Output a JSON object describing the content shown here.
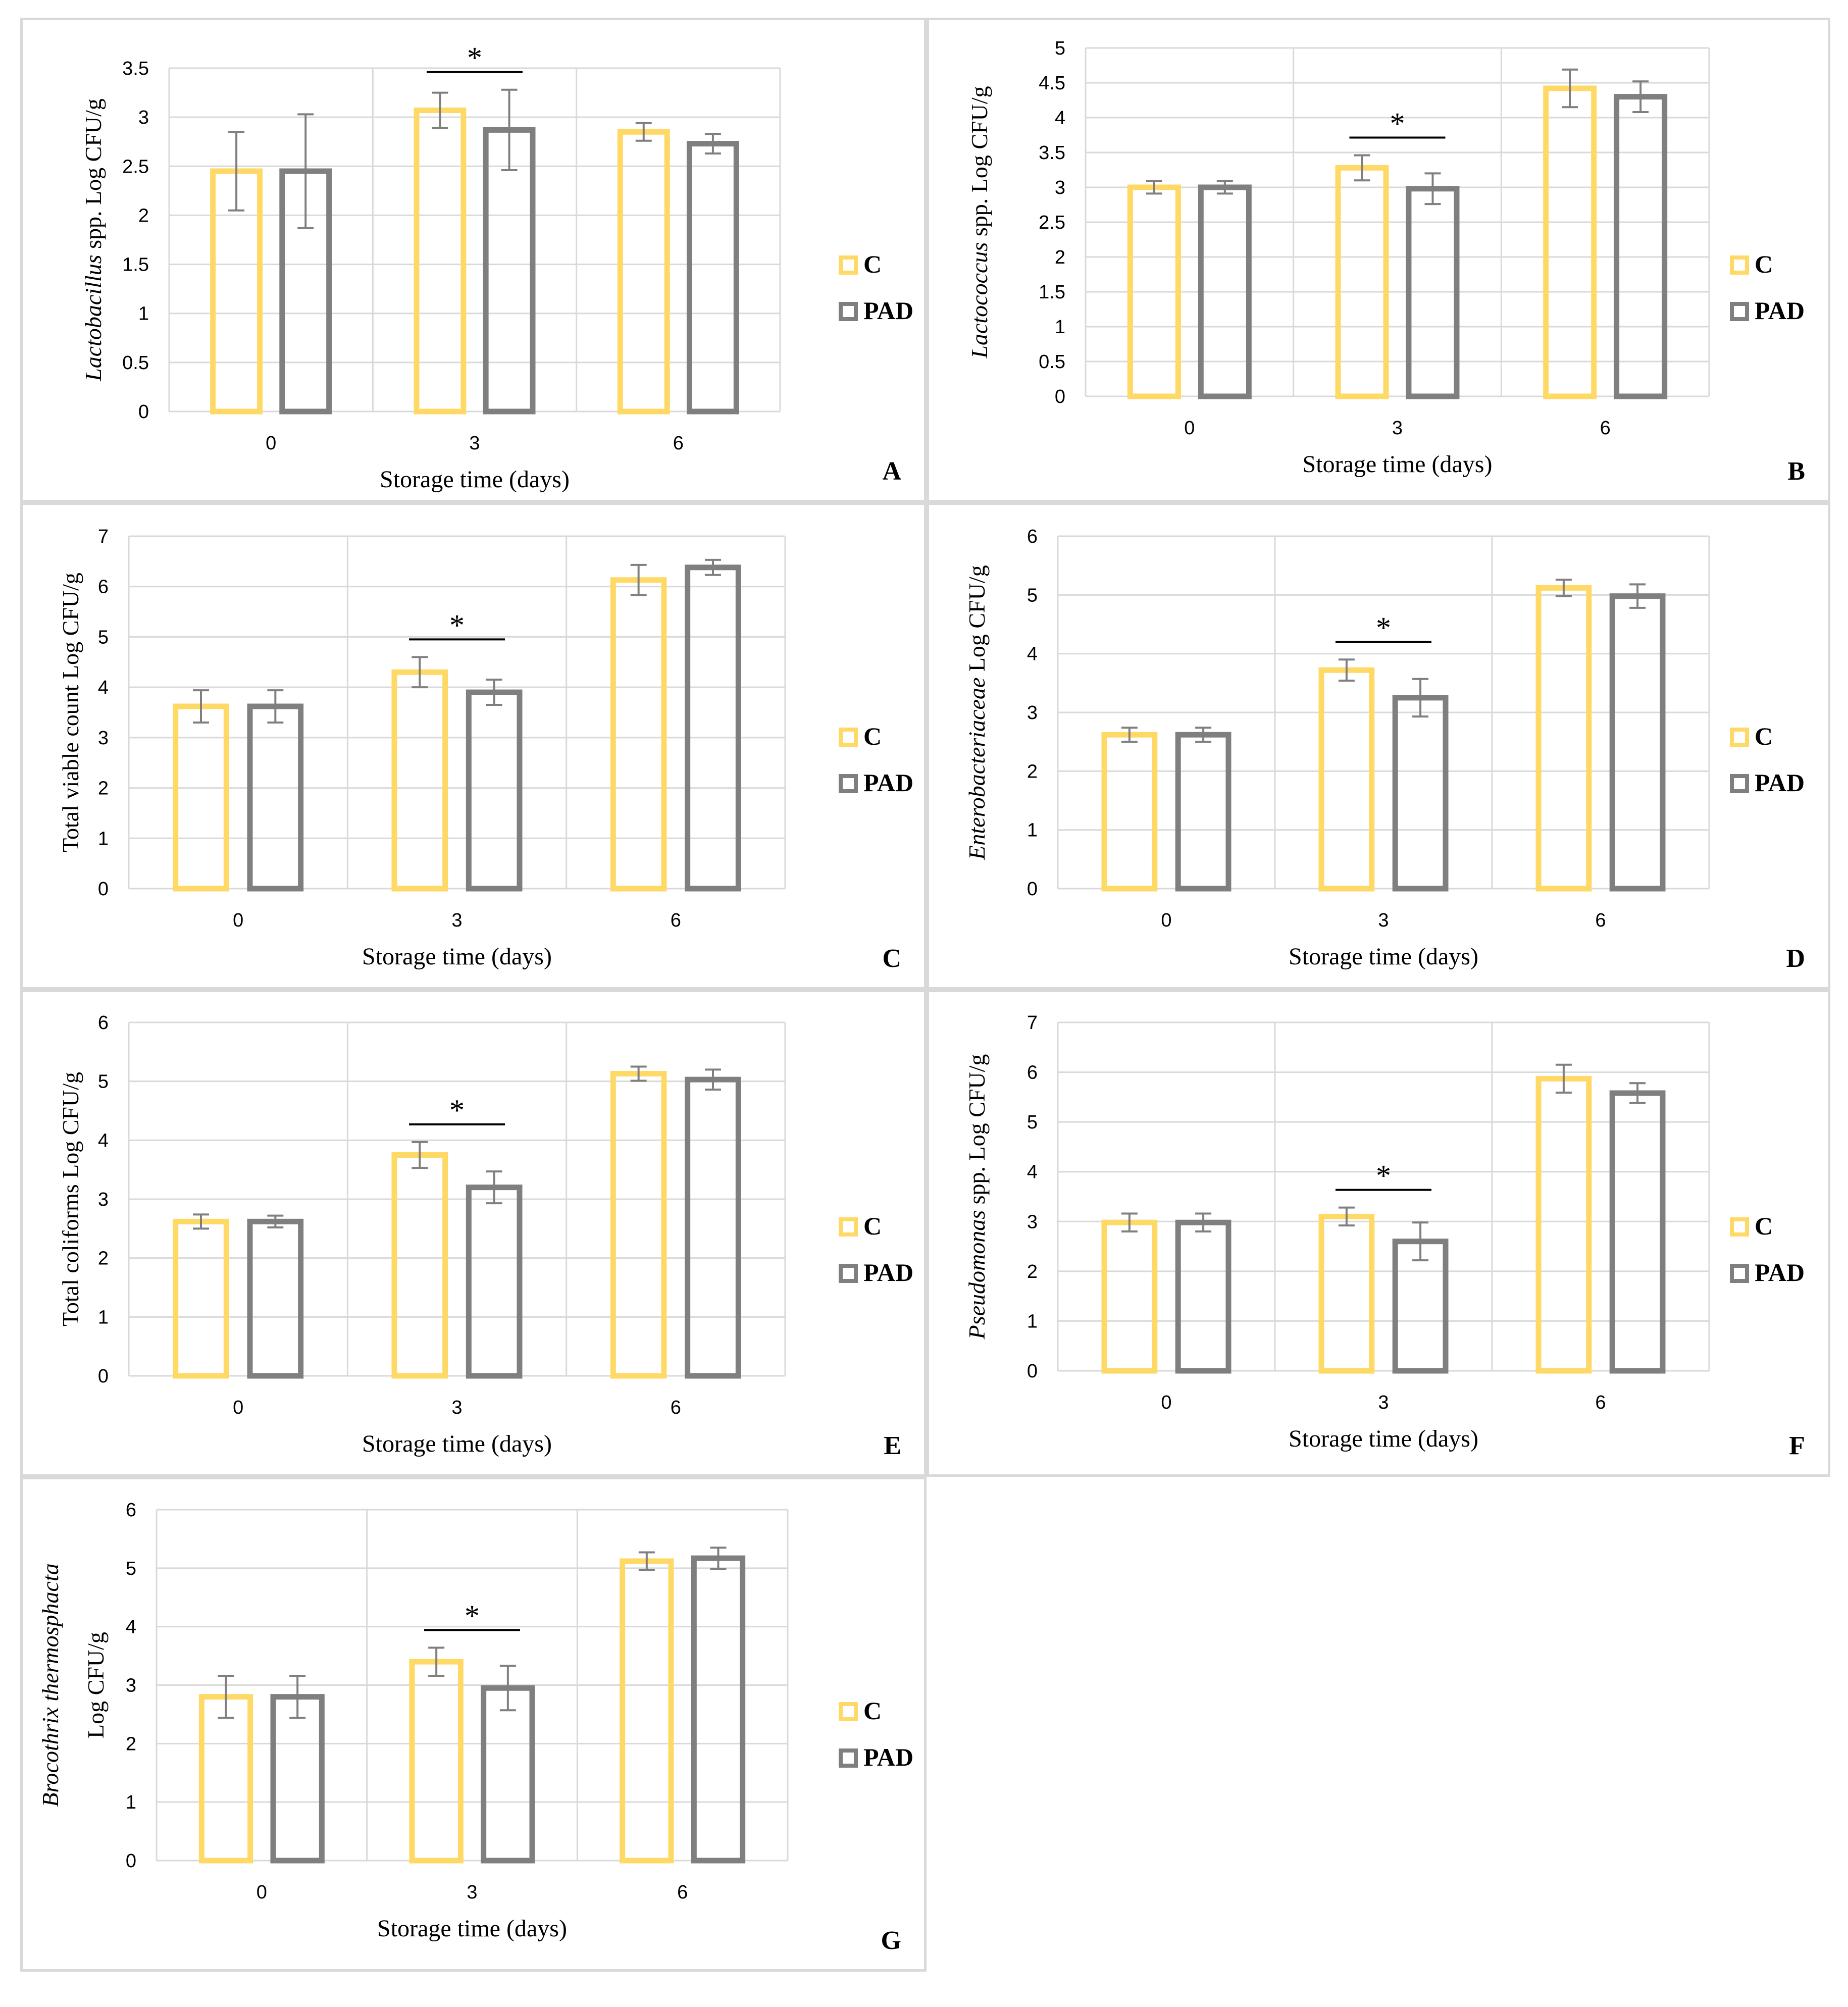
{
  "colors": {
    "C": "#ffd966",
    "PAD": "#7f7f7f",
    "grid": "#d9d9d9",
    "error": "#7f7f7f"
  },
  "legend": [
    "C",
    "PAD"
  ],
  "xlabel": "Storage time (days)",
  "chart_data": [
    {
      "type": "bar",
      "letter": "A",
      "ylabel": [
        {
          "text": "Lactobacillus",
          "italic": true
        },
        {
          "text": " spp. Log CFU/g",
          "italic": false
        }
      ],
      "categories": [
        "0",
        "3",
        "6"
      ],
      "yticks": [
        "0",
        "0.5",
        "1",
        "1.5",
        "2",
        "2.5",
        "3",
        "3.5"
      ],
      "ylim": [
        0,
        3.5
      ],
      "series": [
        {
          "name": "C",
          "values": [
            2.45,
            3.07,
            2.85
          ],
          "errors": [
            0.4,
            0.18,
            0.09
          ]
        },
        {
          "name": "PAD",
          "values": [
            2.45,
            2.87,
            2.73
          ],
          "errors": [
            0.58,
            0.41,
            0.1
          ]
        }
      ],
      "significant": [
        "3"
      ],
      "significance_marker": "*"
    },
    {
      "type": "bar",
      "letter": "B",
      "ylabel": [
        {
          "text": "Lactococcus",
          "italic": true
        },
        {
          "text": " spp. Log CFU/g",
          "italic": false
        }
      ],
      "categories": [
        "0",
        "3",
        "6"
      ],
      "yticks": [
        "0",
        "0.5",
        "1",
        "1.5",
        "2",
        "2.5",
        "3",
        "3.5",
        "4",
        "4.5",
        "5"
      ],
      "ylim": [
        0,
        5
      ],
      "series": [
        {
          "name": "C",
          "values": [
            3.0,
            3.28,
            4.42
          ],
          "errors": [
            0.09,
            0.18,
            0.27
          ]
        },
        {
          "name": "PAD",
          "values": [
            3.0,
            2.98,
            4.3
          ],
          "errors": [
            0.09,
            0.22,
            0.22
          ]
        }
      ],
      "significant": [
        "3"
      ],
      "significance_marker": "*"
    },
    {
      "type": "bar",
      "letter": "C",
      "ylabel": [
        {
          "text": "Total viable count Log CFU/g",
          "italic": false
        }
      ],
      "categories": [
        "0",
        "3",
        "6"
      ],
      "yticks": [
        "0",
        "1",
        "2",
        "3",
        "4",
        "5",
        "6",
        "7"
      ],
      "ylim": [
        0,
        7
      ],
      "series": [
        {
          "name": "C",
          "values": [
            3.62,
            4.3,
            6.13
          ],
          "errors": [
            0.32,
            0.3,
            0.3
          ]
        },
        {
          "name": "PAD",
          "values": [
            3.62,
            3.9,
            6.38
          ],
          "errors": [
            0.32,
            0.25,
            0.15
          ]
        }
      ],
      "significant": [
        "3"
      ],
      "significance_marker": "*"
    },
    {
      "type": "bar",
      "letter": "D",
      "ylabel": [
        {
          "text": "Enterobacteriaceae",
          "italic": true
        },
        {
          "text": " Log CFU/g",
          "italic": false
        }
      ],
      "categories": [
        "0",
        "3",
        "6"
      ],
      "yticks": [
        "0",
        "1",
        "2",
        "3",
        "4",
        "5",
        "6"
      ],
      "ylim": [
        0,
        6
      ],
      "series": [
        {
          "name": "C",
          "values": [
            2.62,
            3.72,
            5.12
          ],
          "errors": [
            0.12,
            0.18,
            0.14
          ]
        },
        {
          "name": "PAD",
          "values": [
            2.62,
            3.25,
            4.98
          ],
          "errors": [
            0.12,
            0.32,
            0.2
          ]
        }
      ],
      "significant": [
        "3"
      ],
      "significance_marker": "*"
    },
    {
      "type": "bar",
      "letter": "E",
      "ylabel": [
        {
          "text": "Total coliforms Log CFU/g",
          "italic": false
        }
      ],
      "categories": [
        "0",
        "3",
        "6"
      ],
      "yticks": [
        "0",
        "1",
        "2",
        "3",
        "4",
        "5",
        "6"
      ],
      "ylim": [
        0,
        6
      ],
      "series": [
        {
          "name": "C",
          "values": [
            2.62,
            3.75,
            5.13
          ],
          "errors": [
            0.12,
            0.22,
            0.12
          ]
        },
        {
          "name": "PAD",
          "values": [
            2.62,
            3.2,
            5.03
          ],
          "errors": [
            0.1,
            0.27,
            0.17
          ]
        }
      ],
      "significant": [
        "3"
      ],
      "significance_marker": "*"
    },
    {
      "type": "bar",
      "letter": "F",
      "ylabel": [
        {
          "text": "Pseudomonas",
          "italic": true
        },
        {
          "text": " spp. Log CFU/g",
          "italic": false
        }
      ],
      "categories": [
        "0",
        "3",
        "6"
      ],
      "yticks": [
        "0",
        "1",
        "2",
        "3",
        "4",
        "5",
        "6",
        "7"
      ],
      "ylim": [
        0,
        7
      ],
      "series": [
        {
          "name": "C",
          "values": [
            2.98,
            3.1,
            5.87
          ],
          "errors": [
            0.18,
            0.18,
            0.28
          ]
        },
        {
          "name": "PAD",
          "values": [
            2.98,
            2.6,
            5.58
          ],
          "errors": [
            0.18,
            0.38,
            0.2
          ]
        }
      ],
      "significant": [
        "3"
      ],
      "significance_marker": "*"
    },
    {
      "type": "bar",
      "letter": "G",
      "ylabel": [
        {
          "text": "Brocothrix thermosphacta",
          "italic": true
        },
        {
          "text": "Log CFU/g",
          "italic": false
        }
      ],
      "categories": [
        "0",
        "3",
        "6"
      ],
      "yticks": [
        "0",
        "1",
        "2",
        "3",
        "4",
        "5",
        "6"
      ],
      "ylim": [
        0,
        6
      ],
      "series": [
        {
          "name": "C",
          "values": [
            2.8,
            3.4,
            5.12
          ],
          "errors": [
            0.36,
            0.24,
            0.15
          ]
        },
        {
          "name": "PAD",
          "values": [
            2.8,
            2.95,
            5.17
          ],
          "errors": [
            0.36,
            0.38,
            0.18
          ]
        }
      ],
      "significant": [
        "3"
      ],
      "significance_marker": "*"
    }
  ]
}
